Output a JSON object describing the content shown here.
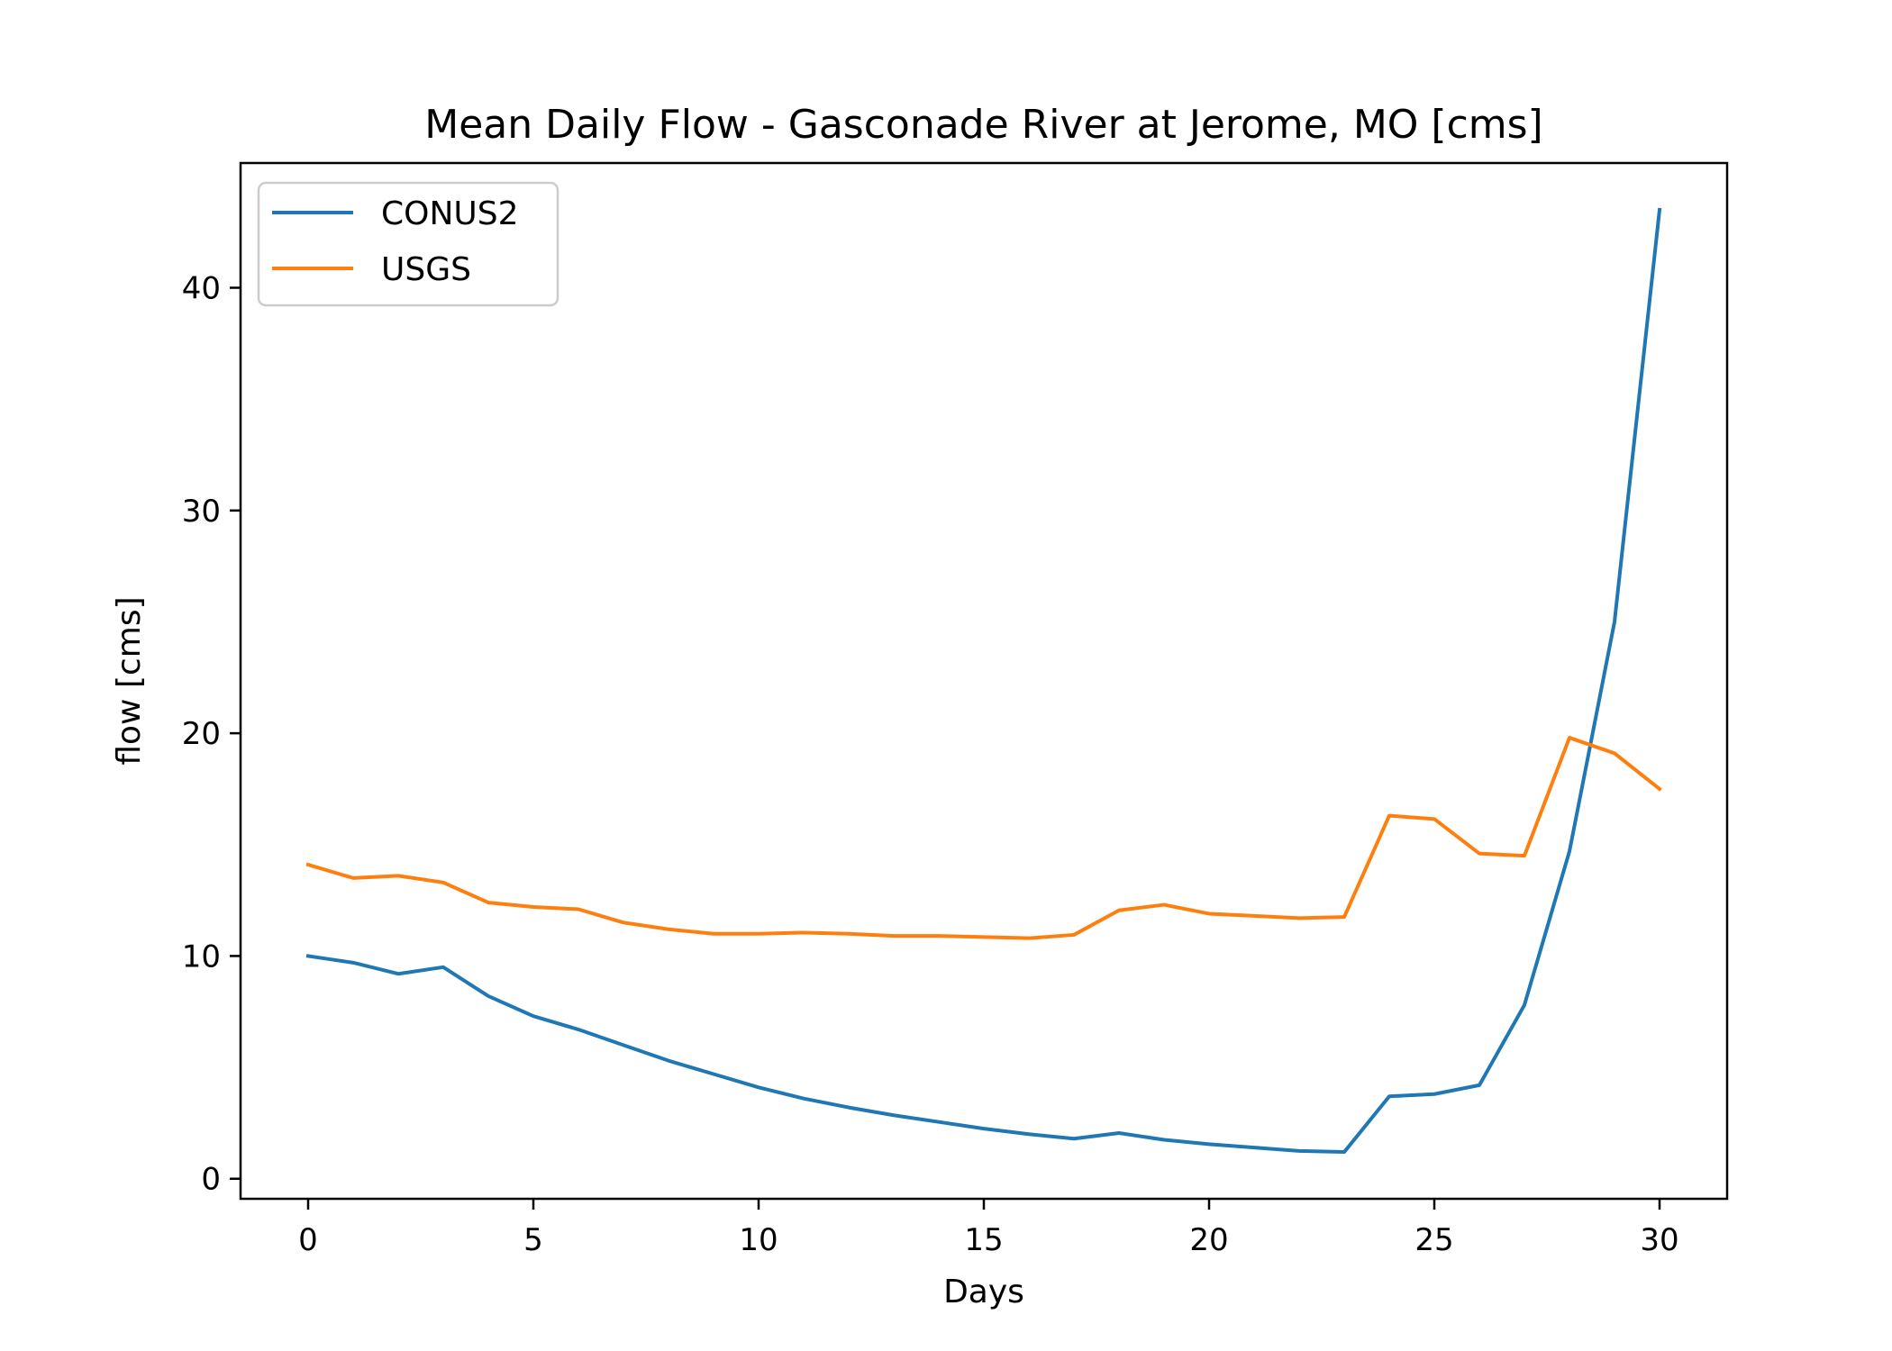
{
  "chart_data": {
    "type": "line",
    "title": "Mean Daily Flow - Gasconade River at Jerome, MO [cms]",
    "xlabel": "Days",
    "ylabel": "flow [cms]",
    "xlim": [
      -1.5,
      31.5
    ],
    "ylim": [
      -0.9,
      45.6
    ],
    "xticks": [
      0,
      5,
      10,
      15,
      20,
      25,
      30
    ],
    "yticks": [
      0,
      10,
      20,
      30,
      40
    ],
    "grid": false,
    "legend": "top-left",
    "x": [
      0,
      1,
      2,
      3,
      4,
      5,
      6,
      7,
      8,
      9,
      10,
      11,
      12,
      13,
      14,
      15,
      16,
      17,
      18,
      19,
      20,
      21,
      22,
      23,
      24,
      25,
      26,
      27,
      28,
      29,
      30
    ],
    "series": [
      {
        "name": "CONUS2",
        "color": "#1f77b4",
        "values": [
          10.0,
          9.7,
          9.2,
          9.5,
          8.2,
          7.3,
          6.7,
          6.0,
          5.3,
          4.7,
          4.1,
          3.6,
          3.2,
          2.85,
          2.55,
          2.25,
          2.0,
          1.8,
          2.05,
          1.75,
          1.55,
          1.4,
          1.25,
          1.2,
          3.7,
          3.8,
          4.2,
          7.8,
          14.7,
          25.0,
          43.5
        ]
      },
      {
        "name": "USGS",
        "color": "#ff7f0e",
        "values": [
          14.1,
          13.5,
          13.6,
          13.3,
          12.4,
          12.2,
          12.1,
          11.5,
          11.2,
          11.0,
          11.0,
          11.05,
          11.0,
          10.9,
          10.9,
          10.85,
          10.8,
          10.95,
          12.05,
          12.3,
          11.9,
          11.8,
          11.7,
          11.75,
          16.3,
          16.15,
          14.6,
          14.5,
          19.8,
          19.1,
          17.5
        ]
      }
    ]
  }
}
